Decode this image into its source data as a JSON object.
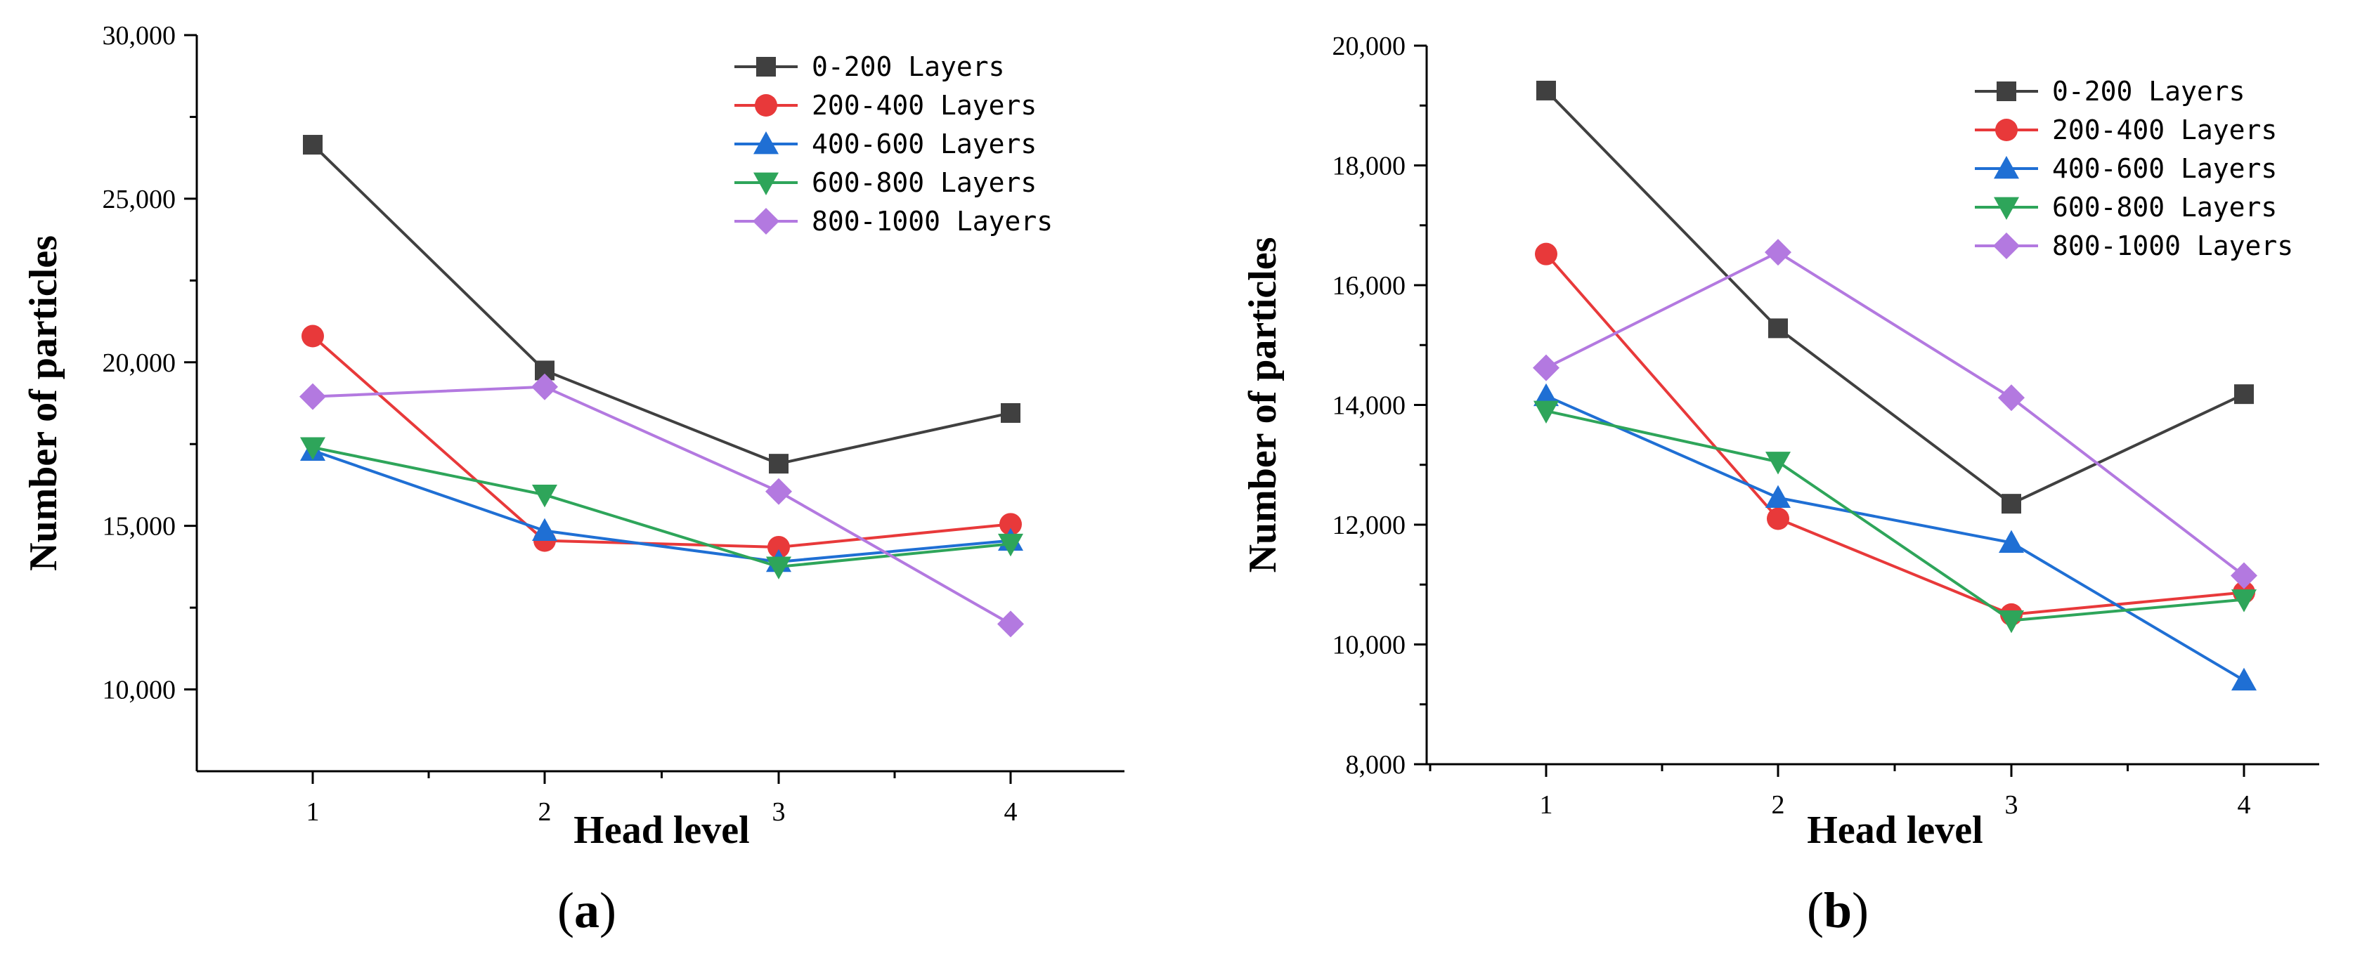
{
  "chart_data": [
    {
      "type": "line",
      "panel_label": "a",
      "x": [
        1,
        2,
        3,
        4
      ],
      "xticks": [
        "1",
        "2",
        "3",
        "4"
      ],
      "xlabel": "Head level",
      "ylabel": "Number of particles",
      "ylim": [
        7500,
        30000
      ],
      "yticks": [
        10000,
        15000,
        20000,
        25000,
        30000
      ],
      "ytick_labels": [
        "10,000",
        "15,000",
        "20,000",
        "25,000",
        "30,000"
      ],
      "legend_position": "top-right",
      "series": [
        {
          "name": "0-200  Layers",
          "color": "#404040",
          "marker": "square",
          "values": [
            26650,
            19750,
            16900,
            18450
          ]
        },
        {
          "name": "200-400  Layers",
          "color": "#e8393a",
          "marker": "circle",
          "values": [
            20800,
            14550,
            14350,
            15050
          ]
        },
        {
          "name": "400-600  Layers",
          "color": "#1f6fd4",
          "marker": "triangle-up",
          "values": [
            17300,
            14850,
            13900,
            14550
          ]
        },
        {
          "name": "600-800  Layers",
          "color": "#2ea55a",
          "marker": "triangle-down",
          "values": [
            17400,
            15950,
            13750,
            14450
          ]
        },
        {
          "name": "800-1000  Layers",
          "color": "#b379e0",
          "marker": "diamond",
          "values": [
            18950,
            19250,
            16050,
            12000
          ]
        }
      ]
    },
    {
      "type": "line",
      "panel_label": "b",
      "x": [
        1,
        2,
        3,
        4
      ],
      "xticks": [
        "1",
        "2",
        "3",
        "4"
      ],
      "xlabel": "Head level",
      "ylabel": "Number of particles",
      "ylim": [
        8000,
        20000
      ],
      "yticks": [
        8000,
        10000,
        12000,
        14000,
        16000,
        18000,
        20000
      ],
      "ytick_labels": [
        "8,000",
        "10,000",
        "12,000",
        "14,000",
        "16,000",
        "18,000",
        "20,000"
      ],
      "legend_position": "top-right",
      "series": [
        {
          "name": "0-200  Layers",
          "color": "#404040",
          "marker": "square",
          "values": [
            19250,
            15280,
            12350,
            14180
          ]
        },
        {
          "name": "200-400  Layers",
          "color": "#e8393a",
          "marker": "circle",
          "values": [
            16520,
            12100,
            10500,
            10870
          ]
        },
        {
          "name": "400-600  Layers",
          "color": "#1f6fd4",
          "marker": "triangle-up",
          "values": [
            14150,
            12450,
            11700,
            9400
          ]
        },
        {
          "name": "600-800  Layers",
          "color": "#2ea55a",
          "marker": "triangle-down",
          "values": [
            13900,
            13050,
            10400,
            10750
          ]
        },
        {
          "name": "800-1000  Layers",
          "color": "#b379e0",
          "marker": "diamond",
          "values": [
            14620,
            16550,
            14120,
            11150
          ]
        }
      ]
    }
  ]
}
